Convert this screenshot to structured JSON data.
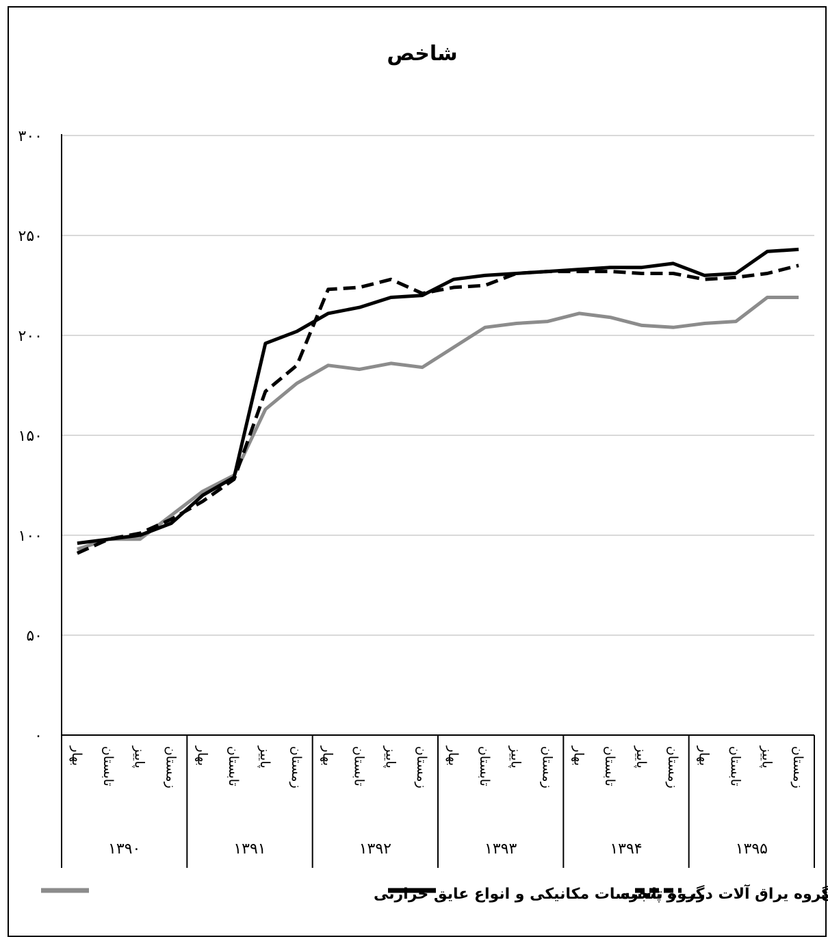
{
  "chart_data": {
    "type": "line",
    "title": "شاخص",
    "xlabel": "",
    "ylabel": "",
    "ylim": [
      0,
      300
    ],
    "yticks": [
      0,
      50,
      100,
      150,
      200,
      250,
      300
    ],
    "ytick_labels": [
      "۰",
      "۵۰",
      "۱۰۰",
      "۱۵۰",
      "۲۰۰",
      "۲۵۰",
      "۳۰۰"
    ],
    "grid": true,
    "legend_position": "bottom",
    "years": [
      "۱۳۹۰",
      "۱۳۹۱",
      "۱۳۹۲",
      "۱۳۹۳",
      "۱۳۹۴",
      "۱۳۹۵"
    ],
    "quarters": [
      "بهار",
      "تابستان",
      "پاییز",
      "زمستان"
    ],
    "series": [
      {
        "name": "گروه تاسیسات مکانیکی و انواع عایق حرارتی",
        "color": "#8c8c8c",
        "style": "solid",
        "values": [
          93,
          98,
          98,
          110,
          122,
          130,
          163,
          176,
          185,
          183,
          186,
          184,
          194,
          204,
          206,
          207,
          211,
          209,
          205,
          204,
          206,
          207,
          219,
          219
        ]
      },
      {
        "name": "گروه یراق آلات درب و پنجره",
        "color": "#000000",
        "style": "solid",
        "values": [
          96,
          98,
          100,
          106,
          120,
          129,
          196,
          202,
          211,
          214,
          219,
          220,
          228,
          230,
          231,
          232,
          233,
          234,
          234,
          236,
          230,
          231,
          242,
          243
        ]
      },
      {
        "name": "گروه نقاشی ساختمان",
        "color": "#000000",
        "style": "dashed",
        "values": [
          91,
          98,
          101,
          108,
          117,
          128,
          172,
          185,
          223,
          224,
          228,
          221,
          224,
          225,
          231,
          232,
          232,
          232,
          231,
          231,
          228,
          229,
          231,
          235
        ]
      }
    ]
  }
}
